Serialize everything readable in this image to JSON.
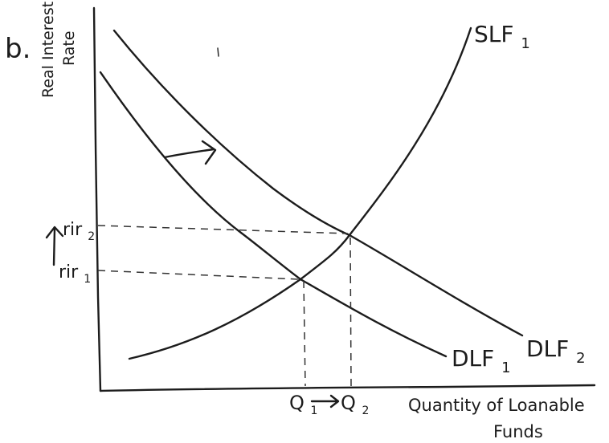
{
  "part_label": "b.",
  "axes": {
    "y_label_line1": "Real Interest",
    "y_label_line2": "Rate",
    "x_label_line1": "Quantity of Loanable",
    "x_label_line2": "Funds"
  },
  "curves": {
    "supply": "SLF",
    "supply_sub": "1",
    "demand_initial": "DLF",
    "demand_initial_sub": "1",
    "demand_new": "DLF",
    "demand_new_sub": "2"
  },
  "rates": {
    "r1": "rir",
    "r1_sub": "1",
    "r2": "rir",
    "r2_sub": "2"
  },
  "quantities": {
    "q1": "Q",
    "q1_sub": "1",
    "q2": "Q",
    "q2_sub": "2"
  },
  "colors": {
    "ink": "#1c1c1c",
    "background": "#ffffff"
  }
}
